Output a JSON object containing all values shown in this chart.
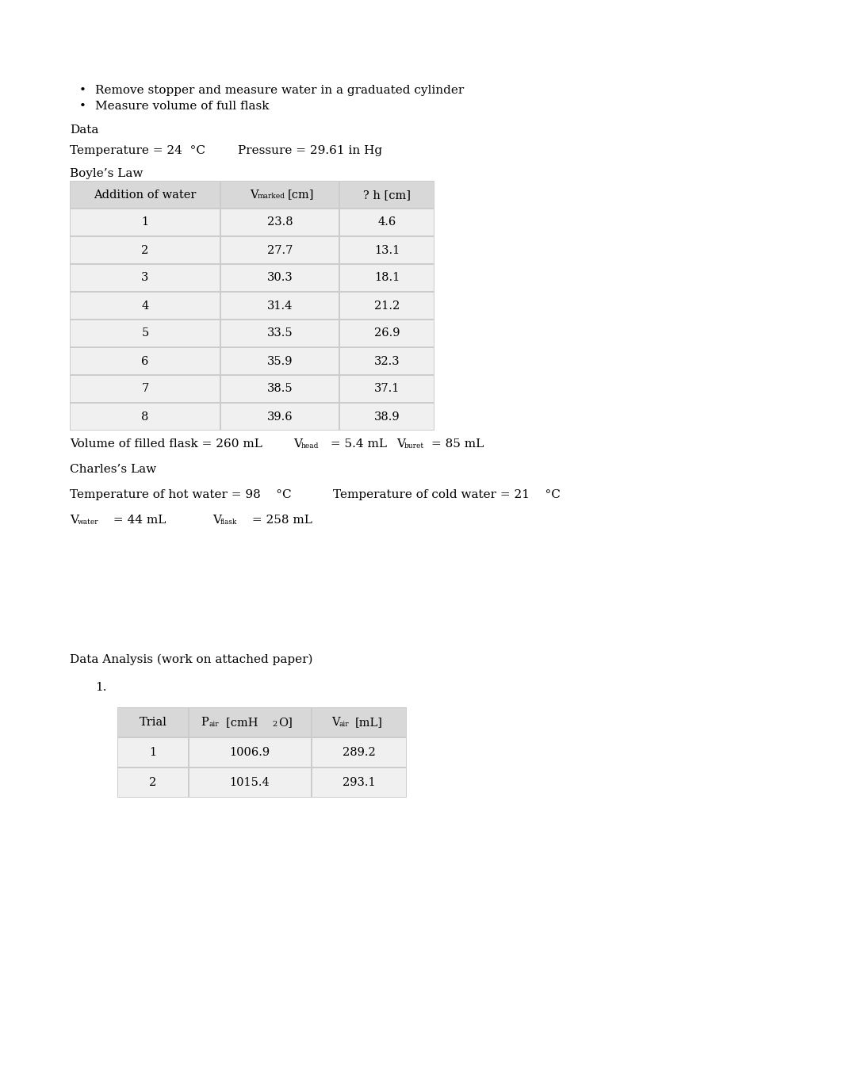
{
  "bullet_points": [
    "Remove stopper and measure water in a graduated cylinder",
    "Measure volume of full flask"
  ],
  "data_label": "Data",
  "boyles_table_col1": [
    1,
    2,
    3,
    4,
    5,
    6,
    7,
    8
  ],
  "boyles_table_col2": [
    23.8,
    27.7,
    30.3,
    31.4,
    33.5,
    35.9,
    38.5,
    39.6
  ],
  "boyles_table_col3": [
    4.6,
    13.1,
    18.1,
    21.2,
    26.9,
    32.3,
    37.1,
    38.9
  ],
  "analysis_table_col1": [
    1,
    2
  ],
  "analysis_table_col2": [
    1006.9,
    1015.4
  ],
  "analysis_table_col3": [
    289.2,
    293.1
  ],
  "bg_color": "#ffffff",
  "table_header_bg": "#d8d8d8",
  "table_row_bg": "#f0f0f0",
  "font_size": 11
}
